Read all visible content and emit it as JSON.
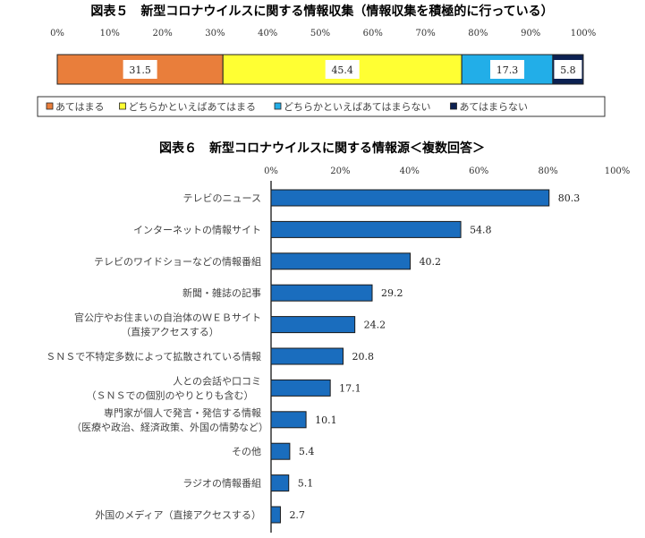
{
  "chart_data": [
    {
      "type": "bar",
      "orientation": "horizontal-stacked",
      "title": "図表５　新型コロナウイルスに関する情報収集（情報収集を積極的に行っている）",
      "xlim": [
        0,
        100
      ],
      "xticks": [
        "0%",
        "10%",
        "20%",
        "30%",
        "40%",
        "50%",
        "60%",
        "70%",
        "80%",
        "90%",
        "100%"
      ],
      "series": [
        {
          "name": "あてはまる",
          "value": 31.5,
          "label": "31.5",
          "color": "#E97E3B"
        },
        {
          "name": "どちらかといえばあてはまる",
          "value": 45.4,
          "label": "45.4",
          "color": "#FFFF33"
        },
        {
          "name": "どちらかといえばあてはまらない",
          "value": 17.3,
          "label": "17.3",
          "color": "#22AEE8"
        },
        {
          "name": "あてはまらない",
          "value": 5.8,
          "label": "5.8",
          "color": "#0C2152"
        }
      ],
      "legend": "bottom"
    },
    {
      "type": "bar",
      "orientation": "horizontal",
      "title": "図表６　新型コロナウイルスに関する情報源＜複数回答＞",
      "xlim": [
        0,
        100
      ],
      "xticks": [
        "0%",
        "20%",
        "40%",
        "60%",
        "80%",
        "100%"
      ],
      "color": "#1A6DBE",
      "categories": [
        [
          "テレビのニュース"
        ],
        [
          "インターネットの情報サイト"
        ],
        [
          "テレビのワイドショーなどの情報番組"
        ],
        [
          "新聞・雑誌の記事"
        ],
        [
          "官公庁やお住まいの自治体のＷＥＢサイト",
          "（直接アクセスする）"
        ],
        [
          "ＳＮＳで不特定多数によって拡散されている情報"
        ],
        [
          "人との会話や口コミ",
          "（ＳＮＳでの個別のやりとりも含む）"
        ],
        [
          "専門家が個人で発言・発信する情報",
          "（医療や政治、経済政策、外国の情勢など）"
        ],
        [
          "その他"
        ],
        [
          "ラジオの情報番組"
        ],
        [
          "外国のメディア（直接アクセスする）"
        ]
      ],
      "values": [
        80.3,
        54.8,
        40.2,
        29.2,
        24.2,
        20.8,
        17.1,
        10.1,
        5.4,
        5.1,
        2.7
      ],
      "labels": [
        "80.3",
        "54.8",
        "40.2",
        "29.2",
        "24.2",
        "20.8",
        "17.1",
        "10.1",
        "5.4",
        "5.1",
        "2.7"
      ]
    }
  ]
}
